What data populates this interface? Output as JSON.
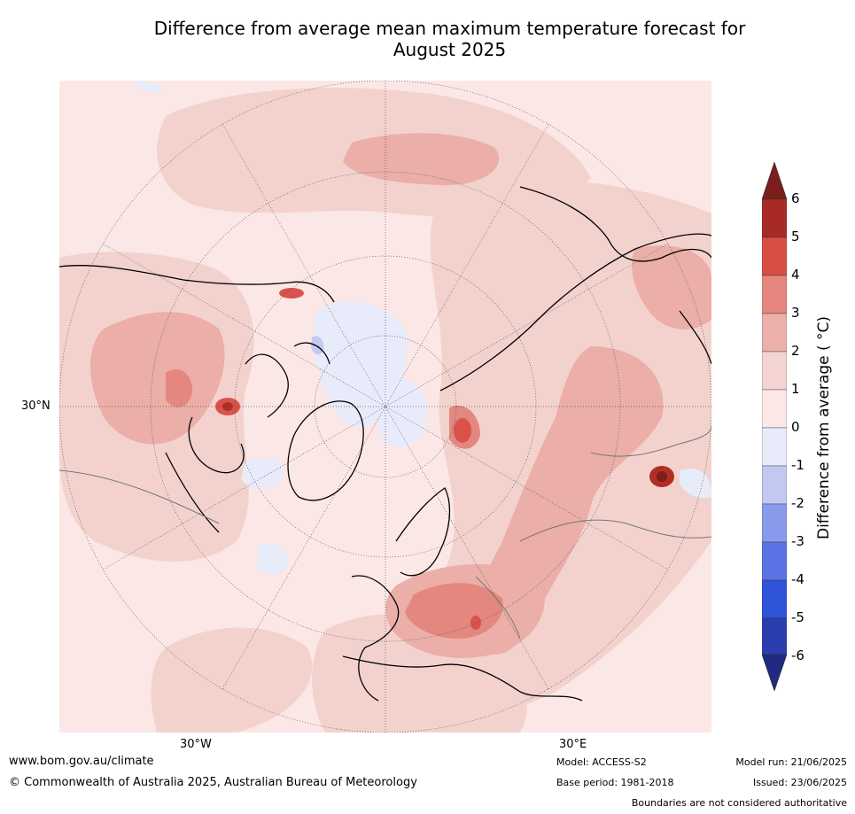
{
  "title": {
    "line1": "Difference from average mean maximum temperature forecast for",
    "line2": "August 2025"
  },
  "map": {
    "projection": "north polar stereographic",
    "lon_labels": [
      "30°W",
      "30°E"
    ],
    "lat_labels": [
      "30°N"
    ],
    "anomaly_colors": {
      "0_to_1": "#fbe8e6",
      "1_to_2": "#f3d2ce",
      "2_to_3": "#ebaea8",
      "3_to_4": "#e3877f",
      "4_to_5": "#d9524b",
      "5_to_6": "#b32d25",
      "above_6": "#7a1f1c",
      "minus1_to_0": "#e8ebfa",
      "minus2_to_minus1": "#c4cbf1"
    }
  },
  "colorbar": {
    "label": "Difference from average ( °C)",
    "ticks": [
      "6",
      "5",
      "4",
      "3",
      "2",
      "1",
      "0",
      "-1",
      "-2",
      "-3",
      "-4",
      "-5",
      "-6"
    ],
    "colors_top_to_bottom": [
      "#7a1f1c",
      "#a82a24",
      "#d84e45",
      "#e5867e",
      "#ecb0aa",
      "#f4d4d1",
      "#fbe8e6",
      "#e8ebfa",
      "#c2c8f2",
      "#8a9aeb",
      "#5a72e3",
      "#2f53d9",
      "#2b3eaf",
      "#1f2a80"
    ]
  },
  "footer": {
    "website": "www.bom.gov.au/climate",
    "copyright": "© Commonwealth of Australia 2025, Australian Bureau of Meteorology",
    "model": "Model: ACCESS-S2",
    "base_period": "Base period: 1981-2018",
    "model_run": "Model run: 21/06/2025",
    "issued": "Issued: 23/06/2025",
    "disclaimer": "Boundaries are not considered authoritative"
  }
}
